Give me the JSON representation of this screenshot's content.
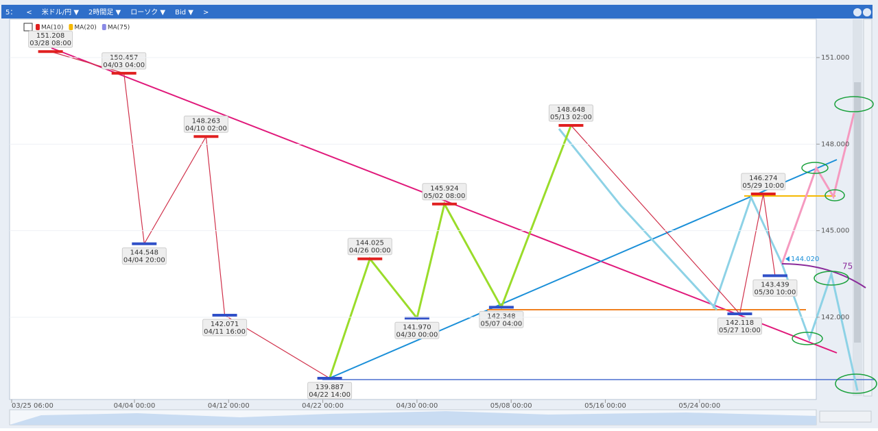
{
  "toolbar": [
    "5：",
    "<",
    "米ドル/円 ▼",
    "2時間足 ▼",
    "ローソク ▼",
    "Bid ▼",
    ">"
  ],
  "chart_data": {
    "type": "line",
    "x": [
      "03/28 08:00",
      "04/03 04:00",
      "04/04 20:00",
      "04/10 02:00",
      "04/11 16:00",
      "04/22 14:00",
      "04/26 00:00",
      "04/30 00:00",
      "05/02 08:00",
      "05/07 04:00",
      "05/13 02:00",
      "05/27 10:00",
      "05/29 10:00",
      "05/30 10:00"
    ],
    "values": [
      151.208,
      150.457,
      144.548,
      148.263,
      142.071,
      139.887,
      144.025,
      141.97,
      145.924,
      142.348,
      148.648,
      142.118,
      146.274,
      143.439
    ],
    "value_labels": [
      "151.208",
      "150.457",
      "144.548",
      "148.263",
      "142.071",
      "139.887",
      "144.025",
      "141.970",
      "145.924",
      "142.348",
      "148.648",
      "142.118",
      "146.274",
      "143.439"
    ],
    "xticks": [
      "03/25 06:00",
      "04/04 00:00",
      "04/12 00:00",
      "04/22 00:00",
      "04/30 00:00",
      "05/08 00:00",
      "05/16 00:00",
      "05/24 00:00"
    ],
    "ylim": [
      139.15,
      152.33
    ],
    "yticks": [
      {
        "value": 142,
        "label": "142.000"
      },
      {
        "value": 145,
        "label": "145.000"
      },
      {
        "value": 148,
        "label": "148.000"
      },
      {
        "value": 151,
        "label": "151.000"
      }
    ],
    "current_price": {
      "value": 144.02,
      "label": "144.020"
    },
    "annotation": "75",
    "legend": [
      {
        "name": "MA(10)",
        "color": "#e02020"
      },
      {
        "name": "MA(20)",
        "color": "#f5b800"
      },
      {
        "name": "MA(75)",
        "color": "#8a8ae6"
      }
    ]
  }
}
